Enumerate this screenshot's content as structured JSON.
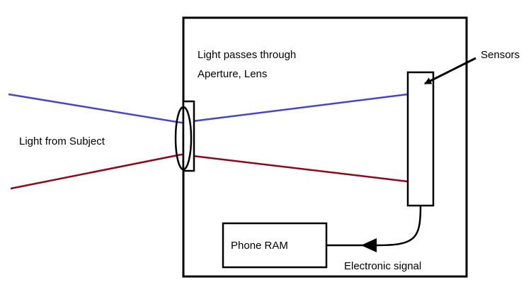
{
  "labels": {
    "light_passes_line1": "Light passes through",
    "light_passes_line2": "Aperture, Lens",
    "sensors": "Sensors",
    "light_from_subject": "Light from Subject",
    "phone_ram": "Phone RAM",
    "electronic_signal": "Electronic signal"
  },
  "colors": {
    "upper_ray": "#4444cc",
    "lower_ray": "#8b0a1a",
    "outline": "#000000",
    "background": "#ffffff"
  }
}
